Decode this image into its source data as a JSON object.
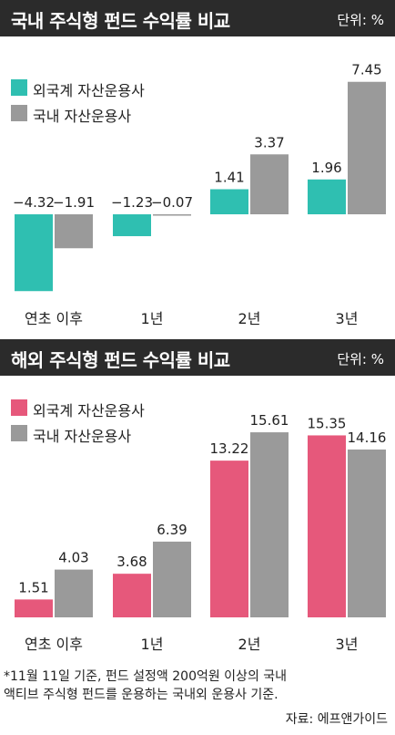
{
  "colors": {
    "domestic_foreign": "#2fbfb1",
    "domestic_local": "#9a9a9a",
    "overseas_foreign": "#e6587b",
    "overseas_local": "#9a9a9a",
    "title_bar": "#2b2b2b"
  },
  "domestic": {
    "title": "국내 주식형 펀드 수익률 비교",
    "unit": "단위: %"
  },
  "overseas": {
    "title": "해외 주식형 펀드 수익률 비교",
    "unit": "단위: %"
  },
  "chart_data": [
    {
      "type": "bar",
      "title": "국내 주식형 펀드 수익률 비교",
      "unit": "단위: %",
      "categories": [
        "연초 이후",
        "1년",
        "2년",
        "3년"
      ],
      "series": [
        {
          "name": "외국계 자산운용사",
          "values": [
            -4.32,
            -1.23,
            1.41,
            1.96
          ],
          "labels": [
            "−4.32",
            "−1.23",
            "1.41",
            "1.96"
          ]
        },
        {
          "name": "국내 자산운용사",
          "values": [
            -1.91,
            -0.07,
            3.37,
            7.45
          ],
          "labels": [
            "−1.91",
            "−0.07",
            "3.37",
            "7.45"
          ]
        }
      ],
      "legend": "top-left",
      "grid": false
    },
    {
      "type": "bar",
      "title": "해외 주식형 펀드 수익률 비교",
      "unit": "단위: %",
      "categories": [
        "연초 이후",
        "1년",
        "2년",
        "3년"
      ],
      "series": [
        {
          "name": "외국계 자산운용사",
          "values": [
            1.51,
            3.68,
            13.22,
            15.35
          ],
          "labels": [
            "1.51",
            "3.68",
            "13.22",
            "15.35"
          ]
        },
        {
          "name": "국내 자산운용사",
          "values": [
            4.03,
            6.39,
            15.61,
            14.16
          ],
          "labels": [
            "4.03",
            "6.39",
            "15.61",
            "14.16"
          ]
        }
      ],
      "legend": "top-left",
      "grid": false
    }
  ],
  "footnote": {
    "line1": "*11월 11일 기준, 펀드 설정액 200억원 이상의 국내",
    "line2": "액티브 주식형 펀드를 운용하는 국내외 운용사 기준.",
    "source": "자료: 에프앤가이드"
  }
}
